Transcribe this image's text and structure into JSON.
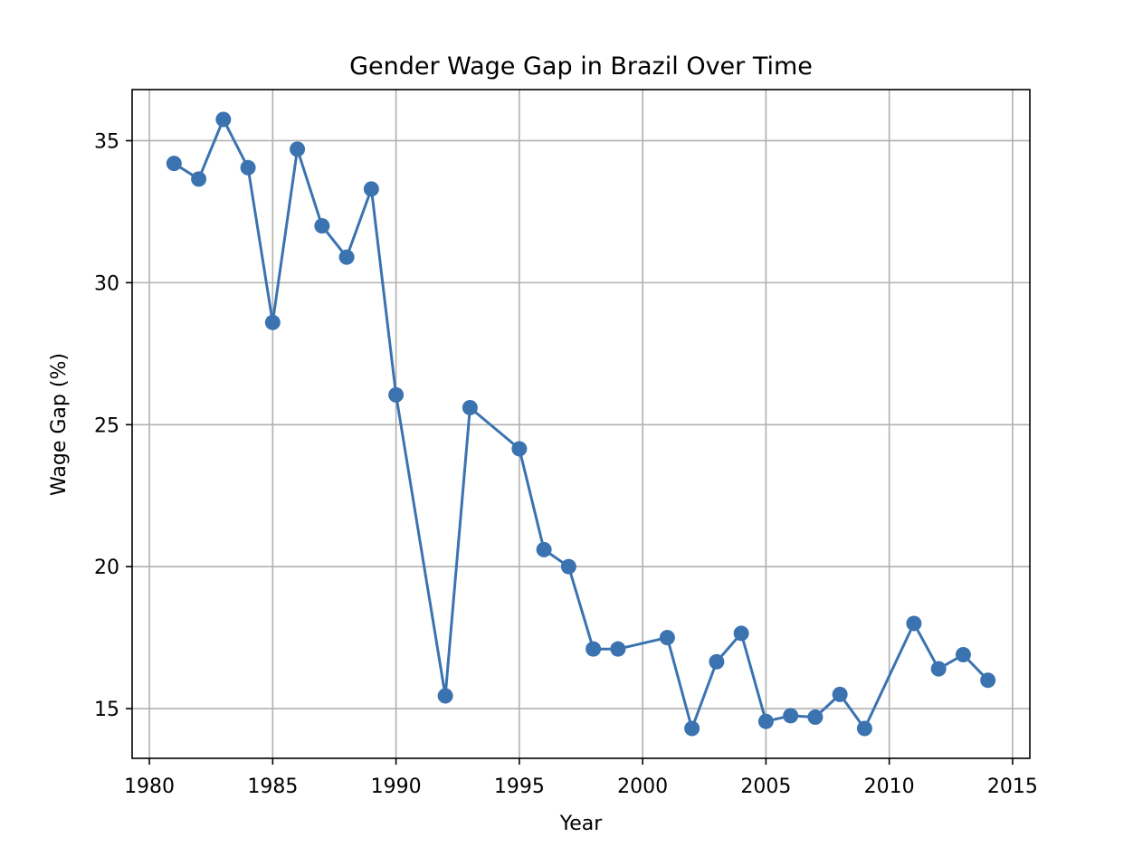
{
  "chart_data": {
    "type": "line",
    "title": "Gender Wage Gap in Brazil Over Time",
    "xlabel": "Year",
    "ylabel": "Wage Gap (%)",
    "xlim": [
      1979.3,
      2015.7
    ],
    "ylim": [
      13.25,
      36.8
    ],
    "xticks": [
      1980,
      1985,
      1990,
      1995,
      2000,
      2005,
      2010,
      2015
    ],
    "yticks": [
      15,
      20,
      25,
      30,
      35
    ],
    "grid": true,
    "legend": "none",
    "series": [
      {
        "color": "#3a73b0",
        "marker": "circle",
        "x": [
          1981,
          1982,
          1983,
          1984,
          1985,
          1986,
          1987,
          1988,
          1989,
          1990,
          1992,
          1993,
          1995,
          1996,
          1997,
          1998,
          1999,
          2001,
          2002,
          2003,
          2004,
          2005,
          2006,
          2007,
          2008,
          2009,
          2011,
          2012,
          2013,
          2014
        ],
        "y": [
          34.2,
          33.65,
          35.75,
          34.05,
          28.6,
          34.7,
          32.0,
          30.9,
          33.3,
          26.05,
          15.45,
          25.6,
          24.15,
          20.6,
          20.0,
          17.1,
          17.1,
          17.5,
          14.3,
          16.65,
          17.65,
          14.55,
          14.75,
          14.7,
          15.5,
          14.3,
          18.0,
          16.4,
          16.9,
          16.0
        ]
      }
    ]
  }
}
